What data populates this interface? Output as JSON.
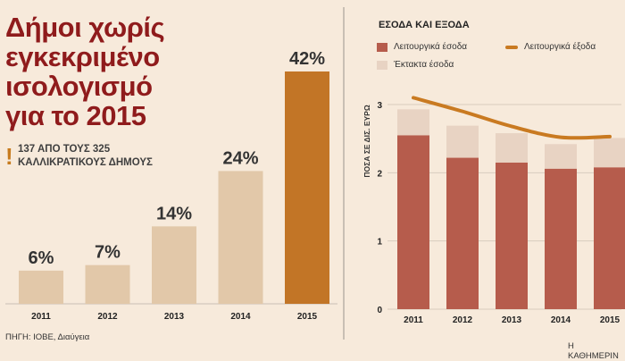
{
  "left": {
    "title": "Δήμοι χωρίς εγκεκριμένο ισολογισμό για το 2015",
    "note": "137 ΑΠΟ ΤΟΥΣ 325 ΚΑΛΛΙΚΡΑΤΙΚΟΥΣ ΔΗΜΟΥΣ",
    "note_icon": "!",
    "source": "ΠΗΓΗ: ΙΟΒΕ, Διαύγεια"
  },
  "right": {
    "title": "ΕΣΟΔΑ ΚΑΙ ΕΞΟΔΑ",
    "credit": "Η ΚΑΘΗΜΕΡΙΝ"
  },
  "colors": {
    "bar_light": "#e2c8a9",
    "bar_highlight": "#c27526",
    "op_revenue": "#b65c4c",
    "extra_revenue": "#e8d3c3",
    "op_expense": "#c97a21"
  },
  "chart_data": [
    {
      "type": "bar",
      "categories": [
        "2011",
        "2012",
        "2013",
        "2014",
        "2015"
      ],
      "values": [
        6,
        7,
        14,
        24,
        42
      ],
      "value_labels": [
        "6%",
        "7%",
        "14%",
        "24%",
        "42%"
      ],
      "highlight_index": 4,
      "title": "Δήμοι χωρίς εγκεκριμένο ισολογισμό για το 2015",
      "xlabel": "",
      "ylabel": "",
      "ylim": [
        0,
        42
      ]
    },
    {
      "type": "bar",
      "stacked": true,
      "categories": [
        "2011",
        "2012",
        "2013",
        "2014",
        "2015"
      ],
      "title": "ΕΣΟΔΑ ΚΑΙ ΕΞΟΔΑ",
      "ylabel": "ΠΟΣΑ ΣΕ ΔΙΣ. ΕΥΡΩ",
      "xlabel": "",
      "ylim": [
        0,
        3
      ],
      "yticks": [
        0,
        1,
        2,
        3
      ],
      "grid": true,
      "legend": "top",
      "series": [
        {
          "name": "Λειτουργικά έσοδα",
          "type": "bar",
          "values": [
            2.55,
            2.22,
            2.15,
            2.06,
            2.08
          ]
        },
        {
          "name": "Έκτακτα έσοδα",
          "type": "bar",
          "values": [
            0.38,
            0.47,
            0.43,
            0.36,
            0.43
          ]
        },
        {
          "name": "Λειτουργικά έξοδα",
          "type": "line",
          "values": [
            3.1,
            2.9,
            2.68,
            2.52,
            2.53
          ]
        }
      ]
    }
  ]
}
